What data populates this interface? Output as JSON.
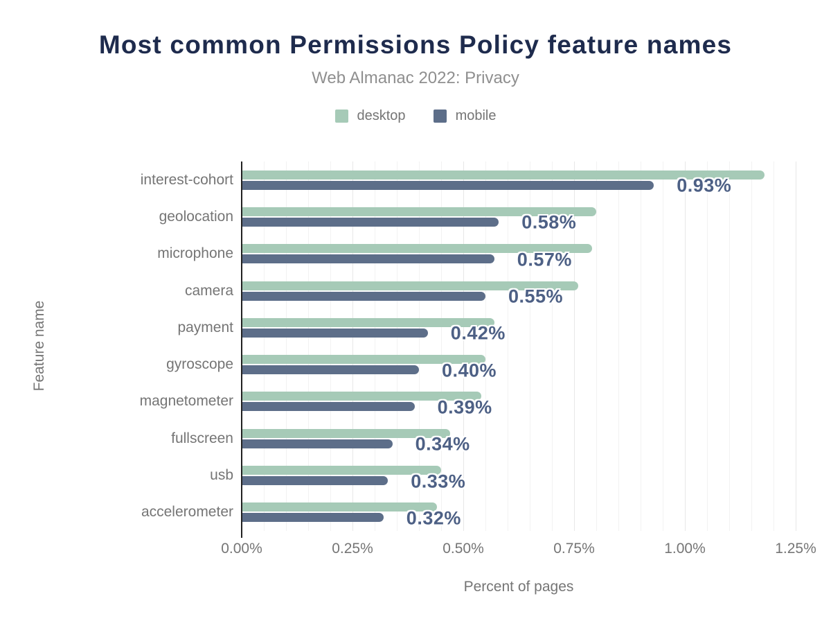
{
  "header": {
    "title": "Most common Permissions Policy feature names",
    "subtitle": "Web Almanac 2022: Privacy"
  },
  "colors": {
    "background": "#ffffff",
    "title": "#1e2b4d",
    "subtitle": "#8f8f8f",
    "axis_text": "#757575",
    "axis_line": "#212121",
    "desktop": "#a6cab7",
    "mobile": "#5d6e89",
    "annotation": "#4d6085",
    "grid_minor": "#f2f2f2",
    "grid_major": "#e7e7e7"
  },
  "chart_data": {
    "type": "bar",
    "orientation": "horizontal",
    "title": "Most common Permissions Policy feature names",
    "subtitle": "Web Almanac 2022: Privacy",
    "categories": [
      "interest-cohort",
      "geolocation",
      "microphone",
      "camera",
      "payment",
      "gyroscope",
      "magnetometer",
      "fullscreen",
      "usb",
      "accelerometer"
    ],
    "series": [
      {
        "name": "desktop",
        "color": "#a6cab7",
        "values": [
          1.18,
          0.8,
          0.79,
          0.76,
          0.57,
          0.55,
          0.54,
          0.47,
          0.45,
          0.44
        ]
      },
      {
        "name": "mobile",
        "color": "#5d6e89",
        "values": [
          0.93,
          0.58,
          0.57,
          0.55,
          0.42,
          0.4,
          0.39,
          0.34,
          0.33,
          0.32
        ],
        "annotations": [
          "0.93%",
          "0.58%",
          "0.57%",
          "0.55%",
          "0.42%",
          "0.40%",
          "0.39%",
          "0.34%",
          "0.33%",
          "0.32%"
        ]
      }
    ],
    "xlabel": "Percent of pages",
    "ylabel": "Feature name",
    "xlim": [
      0,
      1.25
    ],
    "x_tick_labels": [
      "0.00%",
      "0.25%",
      "0.50%",
      "0.75%",
      "1.00%",
      "1.25%"
    ],
    "grid": {
      "visible": true,
      "minor_step": 0.05,
      "major_step": 0.25
    },
    "legend_position": "top",
    "annotation_color": "#4d6085",
    "annotated_series": "mobile"
  }
}
